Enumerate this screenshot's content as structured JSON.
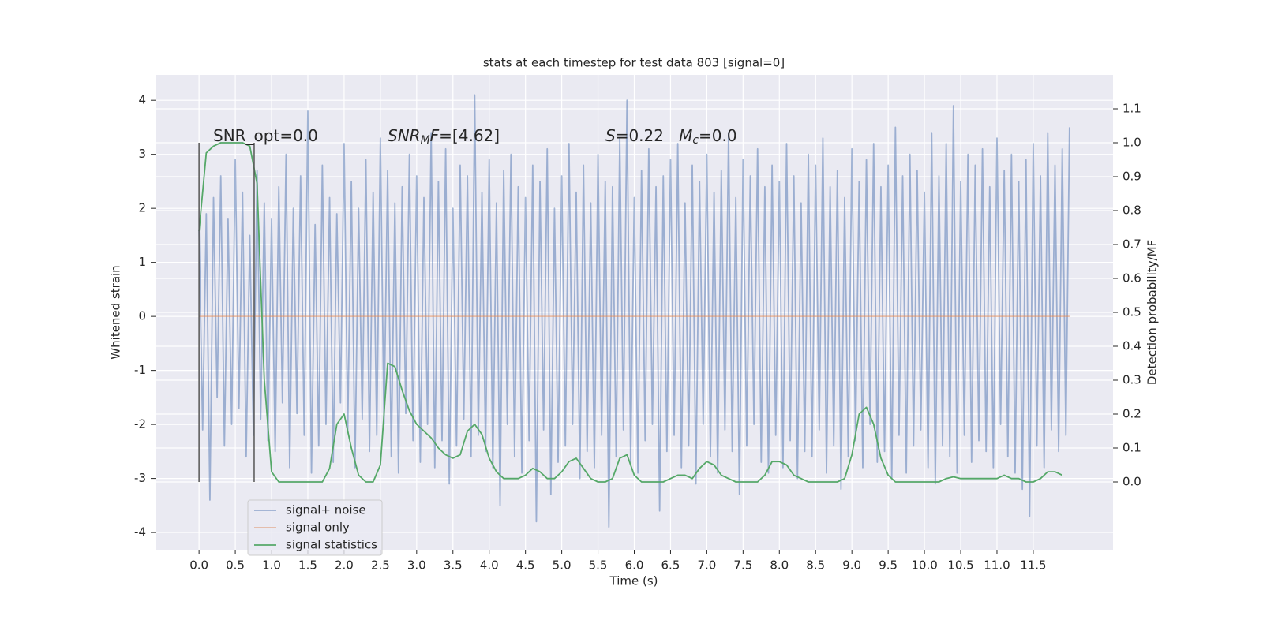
{
  "chart_data": {
    "type": "line",
    "title": "stats at each timestep for test data 803 [signal=0]",
    "xlabel": "Time (s)",
    "ylabel": "Whitened strain",
    "y2label": "Detection probability/MF",
    "xlim": [
      -0.6,
      12.6
    ],
    "ylim": [
      -4.32,
      4.47
    ],
    "y2lim": [
      -0.2,
      1.2
    ],
    "xticks": [
      {
        "value": 0,
        "label": "0.0"
      },
      0.5,
      {
        "value": 1,
        "label": "1.0"
      },
      1.5,
      {
        "value": 2,
        "label": "2.0"
      },
      2.5,
      {
        "value": 3,
        "label": "3.0"
      },
      3.5,
      {
        "value": 4,
        "label": "4.0"
      },
      4.5,
      {
        "value": 5,
        "label": "5.0"
      },
      5.5,
      {
        "value": 6,
        "label": "6.0"
      },
      6.5,
      {
        "value": 7,
        "label": "7.0"
      },
      7.5,
      {
        "value": 8,
        "label": "8.0"
      },
      8.5,
      {
        "value": 9,
        "label": "9.0"
      },
      9.5,
      {
        "value": 10,
        "label": "10.0"
      },
      10.5,
      {
        "value": 11,
        "label": "11.0"
      },
      11.5
    ],
    "yticks": [
      -4,
      -3,
      -2,
      -1,
      0,
      1,
      2,
      3,
      4
    ],
    "y2ticks": [
      {
        "value": 0,
        "label": "0.0"
      },
      0.1,
      0.2,
      0.3,
      0.4,
      0.5,
      0.6,
      0.7,
      0.8,
      0.9,
      {
        "value": 1,
        "label": "1.0"
      },
      1.1
    ],
    "grid": true,
    "legend": "lower left",
    "annotations": [
      {
        "parts": [
          {
            "text": "SNR_opt=0.0"
          }
        ]
      },
      {
        "parts": [
          {
            "text": "SNR",
            "italic": true
          },
          {
            "text": "M",
            "italic": true,
            "sub": true
          },
          {
            "text": "F",
            "italic": true
          },
          {
            "text": "=[4.62]"
          }
        ]
      },
      {
        "parts": [
          {
            "text": "S",
            "italic": true
          },
          {
            "text": "=0.22   "
          },
          {
            "text": "M",
            "italic": true
          },
          {
            "text": "c",
            "italic": true,
            "sub": true
          },
          {
            "text": "=0.0"
          }
        ]
      }
    ],
    "vlines": {
      "x": [
        0,
        0.76
      ],
      "y2min": 0,
      "y2max": 1,
      "color": "#555555"
    },
    "series": [
      {
        "name": "signal+ noise",
        "color": "#4c72b0",
        "alpha": 0.5,
        "x": [
          0,
          0.05,
          0.1,
          0.15,
          0.2,
          0.25,
          0.3,
          0.35,
          0.4,
          0.45,
          0.5,
          0.55,
          0.6,
          0.65,
          0.7,
          0.75,
          0.8,
          0.85,
          0.9,
          0.95,
          1,
          1.05,
          1.1,
          1.15,
          1.2,
          1.25,
          1.3,
          1.35,
          1.4,
          1.45,
          1.5,
          1.55,
          1.6,
          1.65,
          1.7,
          1.75,
          1.8,
          1.85,
          1.9,
          1.95,
          2,
          2.05,
          2.1,
          2.15,
          2.2,
          2.25,
          2.3,
          2.35,
          2.4,
          2.45,
          2.5,
          2.55,
          2.6,
          2.65,
          2.7,
          2.75,
          2.8,
          2.85,
          2.9,
          2.95,
          3,
          3.05,
          3.1,
          3.15,
          3.2,
          3.25,
          3.3,
          3.35,
          3.4,
          3.45,
          3.5,
          3.55,
          3.6,
          3.65,
          3.7,
          3.75,
          3.8,
          3.85,
          3.9,
          3.95,
          4,
          4.05,
          4.1,
          4.15,
          4.2,
          4.25,
          4.3,
          4.35,
          4.4,
          4.45,
          4.5,
          4.55,
          4.6,
          4.65,
          4.7,
          4.75,
          4.8,
          4.85,
          4.9,
          4.95,
          5,
          5.05,
          5.1,
          5.15,
          5.2,
          5.25,
          5.3,
          5.35,
          5.4,
          5.45,
          5.5,
          5.55,
          5.6,
          5.65,
          5.7,
          5.75,
          5.8,
          5.85,
          5.9,
          5.95,
          6,
          6.05,
          6.1,
          6.15,
          6.2,
          6.25,
          6.3,
          6.35,
          6.4,
          6.45,
          6.5,
          6.55,
          6.6,
          6.65,
          6.7,
          6.75,
          6.8,
          6.85,
          6.9,
          6.95,
          7,
          7.05,
          7.1,
          7.15,
          7.2,
          7.25,
          7.3,
          7.35,
          7.4,
          7.45,
          7.5,
          7.55,
          7.6,
          7.65,
          7.7,
          7.75,
          7.8,
          7.85,
          7.9,
          7.95,
          8,
          8.05,
          8.1,
          8.15,
          8.2,
          8.25,
          8.3,
          8.35,
          8.4,
          8.45,
          8.5,
          8.55,
          8.6,
          8.65,
          8.7,
          8.75,
          8.8,
          8.85,
          8.9,
          8.95,
          9,
          9.05,
          9.1,
          9.15,
          9.2,
          9.25,
          9.3,
          9.35,
          9.4,
          9.45,
          9.5,
          9.55,
          9.6,
          9.65,
          9.7,
          9.75,
          9.8,
          9.85,
          9.9,
          9.95,
          10,
          10.05,
          10.1,
          10.15,
          10.2,
          10.25,
          10.3,
          10.35,
          10.4,
          10.45,
          10.5,
          10.55,
          10.6,
          10.65,
          10.7,
          10.75,
          10.8,
          10.85,
          10.9,
          10.95,
          11,
          11.05,
          11.1,
          11.15,
          11.2,
          11.25,
          11.3,
          11.35,
          11.4,
          11.45,
          11.5,
          11.55,
          11.6,
          11.65,
          11.7,
          11.75,
          11.8,
          11.85,
          11.9,
          11.95,
          12
        ],
        "values": [
          1.6,
          -2.1,
          1.9,
          -3.4,
          2.2,
          -1.5,
          2.6,
          -2.4,
          1.8,
          -2.0,
          2.9,
          -1.7,
          2.3,
          -2.6,
          1.5,
          -2.2,
          2.7,
          -1.9,
          2.1,
          -2.3,
          1.8,
          -2.5,
          2.4,
          -1.6,
          3.0,
          -2.8,
          2.0,
          -1.8,
          2.6,
          -2.2,
          3.8,
          -2.9,
          1.7,
          -2.4,
          2.8,
          -2.0,
          2.2,
          -2.7,
          1.9,
          -1.6,
          3.2,
          -2.1,
          2.5,
          -2.8,
          2.0,
          -1.9,
          2.9,
          -2.5,
          2.3,
          -2.2,
          3.3,
          -2.0,
          2.7,
          -2.6,
          2.1,
          -2.9,
          2.4,
          -1.8,
          3.0,
          -2.3,
          2.6,
          -2.7,
          2.2,
          -2.0,
          3.4,
          -2.8,
          2.5,
          -2.3,
          3.1,
          -3.1,
          2.0,
          -2.4,
          2.8,
          -1.9,
          2.6,
          -2.6,
          4.1,
          -2.2,
          2.3,
          -2.5,
          2.9,
          -2.8,
          2.1,
          -3.5,
          2.7,
          -2.0,
          3.0,
          -2.6,
          2.4,
          -2.9,
          2.2,
          -2.3,
          2.8,
          -3.8,
          2.5,
          -2.1,
          3.1,
          -3.3,
          2.0,
          -2.7,
          2.6,
          -2.4,
          3.2,
          -2.0,
          2.3,
          -3.0,
          2.8,
          -2.5,
          2.1,
          -2.8,
          3.0,
          -2.2,
          2.5,
          -3.9,
          2.4,
          -2.6,
          3.3,
          -2.1,
          4.0,
          -2.7,
          2.2,
          -2.9,
          2.7,
          -2.3,
          3.1,
          -2.0,
          2.4,
          -3.6,
          2.6,
          -2.5,
          2.9,
          -2.2,
          3.2,
          -2.8,
          2.1,
          -2.4,
          2.8,
          -3.1,
          2.5,
          -2.0,
          3.0,
          -2.6,
          2.3,
          -2.9,
          2.7,
          -2.1,
          3.4,
          -2.5,
          2.2,
          -3.3,
          2.9,
          -2.4,
          2.6,
          -2.0,
          3.1,
          -2.7,
          2.4,
          -2.9,
          2.8,
          -2.2,
          2.5,
          -2.8,
          3.2,
          -2.3,
          2.6,
          -3.0,
          2.1,
          -2.5,
          3.0,
          -2.6,
          2.8,
          -2.1,
          3.3,
          -2.9,
          2.4,
          -2.4,
          2.7,
          -3.2,
          2.2,
          -2.6,
          3.1,
          -2.3,
          2.5,
          -2.8,
          2.9,
          -2.0,
          3.2,
          -2.7,
          2.4,
          -2.5,
          2.8,
          -3.0,
          3.5,
          -2.2,
          2.6,
          -2.9,
          3.0,
          -2.4,
          2.7,
          -2.1,
          2.3,
          -2.8,
          3.4,
          -3.1,
          2.6,
          -2.4,
          3.2,
          -2.6,
          3.9,
          -2.9,
          2.5,
          -2.2,
          3.0,
          -2.7,
          2.8,
          -2.3,
          3.1,
          -2.5,
          2.4,
          -2.8,
          3.3,
          -2.0,
          2.7,
          -2.6,
          3.0,
          -2.9,
          2.5,
          -3.2,
          2.9,
          -3.7,
          3.2,
          -2.4,
          2.6,
          -2.8,
          3.4,
          -2.1,
          2.8,
          -2.5,
          3.1,
          -2.2,
          3.5
        ]
      },
      {
        "name": "signal only",
        "color": "#dd8452",
        "alpha": 0.5,
        "x": [
          0,
          12
        ],
        "values": [
          0,
          0
        ]
      },
      {
        "name": "signal statistics",
        "color": "#55a868",
        "axis": "y2",
        "x": [
          0,
          0.1,
          0.2,
          0.3,
          0.4,
          0.5,
          0.6,
          0.7,
          0.8,
          0.9,
          1,
          1.1,
          1.2,
          1.3,
          1.4,
          1.5,
          1.6,
          1.7,
          1.8,
          1.9,
          2,
          2.1,
          2.2,
          2.3,
          2.4,
          2.5,
          2.6,
          2.7,
          2.8,
          2.9,
          3,
          3.1,
          3.2,
          3.3,
          3.4,
          3.5,
          3.6,
          3.7,
          3.8,
          3.9,
          4,
          4.1,
          4.2,
          4.3,
          4.4,
          4.5,
          4.6,
          4.7,
          4.8,
          4.9,
          5,
          5.1,
          5.2,
          5.3,
          5.4,
          5.5,
          5.6,
          5.7,
          5.8,
          5.9,
          6,
          6.1,
          6.2,
          6.3,
          6.4,
          6.5,
          6.6,
          6.7,
          6.8,
          6.9,
          7,
          7.1,
          7.2,
          7.3,
          7.4,
          7.5,
          7.6,
          7.7,
          7.8,
          7.9,
          8,
          8.1,
          8.2,
          8.3,
          8.4,
          8.5,
          8.6,
          8.7,
          8.8,
          8.9,
          9,
          9.1,
          9.2,
          9.3,
          9.4,
          9.5,
          9.6,
          9.7,
          9.8,
          9.9,
          10,
          10.1,
          10.2,
          10.3,
          10.4,
          10.5,
          10.6,
          10.7,
          10.8,
          10.9,
          11,
          11.1,
          11.2,
          11.3,
          11.4,
          11.5,
          11.6,
          11.7,
          11.8,
          11.9
        ],
        "values": [
          0.74,
          0.97,
          0.99,
          1.0,
          1.0,
          1.0,
          1.0,
          0.99,
          0.88,
          0.3,
          0.03,
          0.0,
          0.0,
          0.0,
          0.0,
          0.0,
          0.0,
          0.0,
          0.04,
          0.17,
          0.2,
          0.1,
          0.02,
          0.0,
          0.0,
          0.05,
          0.35,
          0.34,
          0.27,
          0.21,
          0.17,
          0.15,
          0.13,
          0.1,
          0.08,
          0.07,
          0.08,
          0.15,
          0.17,
          0.14,
          0.07,
          0.03,
          0.01,
          0.01,
          0.01,
          0.02,
          0.04,
          0.03,
          0.01,
          0.01,
          0.03,
          0.06,
          0.07,
          0.04,
          0.01,
          0.0,
          0.0,
          0.01,
          0.07,
          0.08,
          0.02,
          0.0,
          0.0,
          0.0,
          0.0,
          0.01,
          0.02,
          0.02,
          0.01,
          0.04,
          0.06,
          0.05,
          0.02,
          0.01,
          0.0,
          0.0,
          0.0,
          0.0,
          0.02,
          0.06,
          0.06,
          0.05,
          0.02,
          0.01,
          0.0,
          0.0,
          0.0,
          0.0,
          0.0,
          0.01,
          0.08,
          0.2,
          0.22,
          0.17,
          0.07,
          0.02,
          0.0,
          0.0,
          0.0,
          0.0,
          0.0,
          0.0,
          0.0,
          0.01,
          0.015,
          0.01,
          0.01,
          0.01,
          0.01,
          0.01,
          0.01,
          0.02,
          0.01,
          0.01,
          0.0,
          0.0,
          0.01,
          0.03,
          0.03,
          0.02
        ]
      }
    ]
  }
}
